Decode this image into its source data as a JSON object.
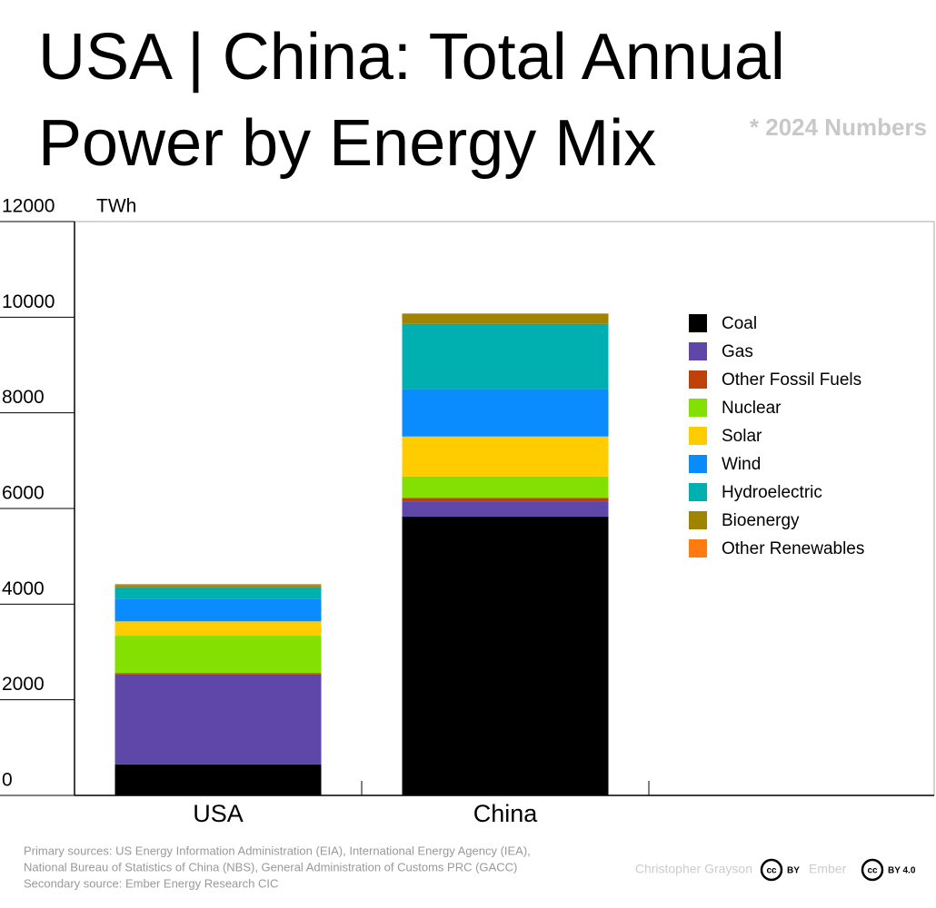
{
  "chart_data": {
    "type": "stacked_bar",
    "title": [
      "USA | China: Total Annual",
      "Power by Energy Mix"
    ],
    "subtitle": "* 2024 Numbers",
    "y_axis_label": "TWh",
    "categories": [
      "USA",
      "China"
    ],
    "ylim": [
      0,
      12000
    ],
    "yticks": [
      0,
      2000,
      4000,
      6000,
      8000,
      10000,
      12000
    ],
    "legend_position": "right",
    "series": [
      {
        "name": "Coal",
        "color": "#000000",
        "values": [
          650,
          5830
        ]
      },
      {
        "name": "Gas",
        "color": "#5e47a8",
        "values": [
          1880,
          320
        ]
      },
      {
        "name": "Other Fossil Fuels",
        "color": "#c0400a",
        "values": [
          30,
          70
        ]
      },
      {
        "name": "Nuclear",
        "color": "#84e000",
        "values": [
          780,
          450
        ]
      },
      {
        "name": "Solar",
        "color": "#ffcc00",
        "values": [
          300,
          835
        ]
      },
      {
        "name": "Wind",
        "color": "#0a8cff",
        "values": [
          475,
          990
        ]
      },
      {
        "name": "Hydroelectric",
        "color": "#00b0b0",
        "values": [
          240,
          1365
        ]
      },
      {
        "name": "Bioenergy",
        "color": "#a08400",
        "values": [
          45,
          210
        ]
      },
      {
        "name": "Other Renewables",
        "color": "#ff7a10",
        "values": [
          20,
          10
        ]
      }
    ],
    "sources": [
      "Primary sources: US Energy Information Administration (EIA), International Energy Agency (IEA),",
      "National Bureau of Statistics of China (NBS), General Administration of Customs PRC (GACC)",
      "Secondary source:  Ember Energy Research CIC"
    ],
    "author": "Christopher Grayson",
    "publisher": "Ember",
    "cc_icon": "cc",
    "license_1": "BY",
    "license_2": "BY 4.0"
  }
}
